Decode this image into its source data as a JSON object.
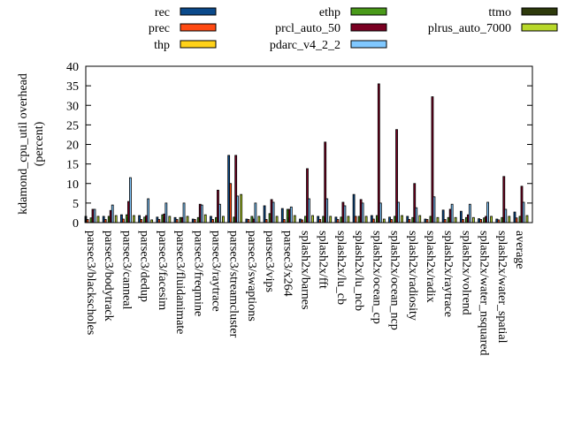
{
  "chart_data": {
    "type": "bar",
    "title": "",
    "xlabel": "",
    "ylabel_lines": [
      "kdamond_cpu_util overhead",
      "(percent)"
    ],
    "ylim": [
      0,
      40
    ],
    "yticks": [
      0,
      5,
      10,
      15,
      20,
      25,
      30,
      35,
      40
    ],
    "legend_placement": "top",
    "categories": [
      "parsec3/blackscholes",
      "parsec3/bodytrack",
      "parsec3/canneal",
      "parsec3/dedup",
      "parsec3/facesim",
      "parsec3/fluidanimate",
      "parsec3/freqmine",
      "parsec3/raytrace",
      "parsec3/streamcluster",
      "parsec3/swaptions",
      "parsec3/vips",
      "parsec3/x264",
      "splash2x/barnes",
      "splash2x/fft",
      "splash2x/lu_cb",
      "splash2x/lu_ncb",
      "splash2x/ocean_cp",
      "splash2x/ocean_ncp",
      "splash2x/radiosity",
      "splash2x/radix",
      "splash2x/raytrace",
      "splash2x/volrend",
      "splash2x/water_nsquared",
      "splash2x/water_spatial",
      "average"
    ],
    "series": [
      {
        "name": "rec",
        "color": "#0b4a8b",
        "values": [
          1.6,
          1.6,
          2.0,
          1.8,
          1.4,
          1.3,
          0.9,
          1.6,
          17.2,
          0.9,
          4.3,
          3.6,
          0.9,
          1.6,
          1.4,
          7.2,
          1.8,
          1.4,
          1.6,
          0.9,
          3.2,
          2.9,
          1.0,
          0.9,
          2.7
        ]
      },
      {
        "name": "prec",
        "color": "#ff4a12",
        "values": [
          0.8,
          0.8,
          0.9,
          0.8,
          0.8,
          0.8,
          0.8,
          0.8,
          10.0,
          0.8,
          0.8,
          0.8,
          0.7,
          0.8,
          0.8,
          1.6,
          0.9,
          0.8,
          0.8,
          0.8,
          0.8,
          0.8,
          0.8,
          0.7,
          1.2
        ]
      },
      {
        "name": "thp",
        "color": "#ffd21a",
        "values": [
          0,
          0,
          0,
          0,
          0,
          0,
          0,
          0,
          0,
          0,
          0,
          0,
          0,
          0,
          0,
          0,
          0,
          0,
          0,
          0,
          0,
          0,
          0,
          0,
          0
        ]
      },
      {
        "name": "ethp",
        "color": "#4a9a1a",
        "values": [
          1.2,
          1.6,
          2.0,
          1.4,
          2.0,
          1.3,
          1.3,
          1.3,
          1.4,
          1.6,
          2.3,
          3.4,
          1.6,
          1.6,
          1.4,
          1.6,
          1.8,
          1.6,
          1.3,
          1.6,
          1.3,
          1.3,
          1.2,
          1.3,
          1.6
        ]
      },
      {
        "name": "prcl_auto_50",
        "color": "#7a0022",
        "values": [
          3.4,
          3.1,
          5.4,
          1.8,
          2.2,
          1.3,
          4.7,
          8.3,
          17.2,
          0.9,
          5.9,
          3.4,
          13.8,
          20.6,
          5.2,
          5.9,
          35.5,
          23.8,
          10.0,
          32.2,
          3.4,
          2.0,
          1.6,
          11.8,
          9.3
        ]
      },
      {
        "name": "pdarc_v4_2_2",
        "color": "#80c8ff",
        "values": [
          3.4,
          4.5,
          11.5,
          6.1,
          5.0,
          5.0,
          4.5,
          4.7,
          6.8,
          5.0,
          5.2,
          4.0,
          6.1,
          6.1,
          4.3,
          5.0,
          5.0,
          5.2,
          3.8,
          6.6,
          4.7,
          4.7,
          5.2,
          3.4,
          5.2
        ]
      },
      {
        "name": "ttmo",
        "color": "#2e3a0c",
        "values": [
          0,
          0,
          0,
          0,
          0,
          0,
          0,
          0,
          0,
          0,
          0,
          0,
          0,
          0,
          0,
          0,
          0,
          0,
          0,
          0,
          0,
          0,
          0,
          0,
          0
        ]
      },
      {
        "name": "plrus_auto_7000",
        "color": "#b8d82a",
        "values": [
          1.6,
          1.8,
          1.8,
          0.7,
          1.6,
          1.6,
          2.0,
          1.6,
          7.2,
          1.6,
          1.6,
          1.8,
          1.8,
          1.6,
          1.6,
          1.6,
          0.9,
          1.8,
          1.8,
          1.3,
          1.3,
          1.3,
          1.6,
          1.6,
          1.8
        ]
      }
    ]
  }
}
